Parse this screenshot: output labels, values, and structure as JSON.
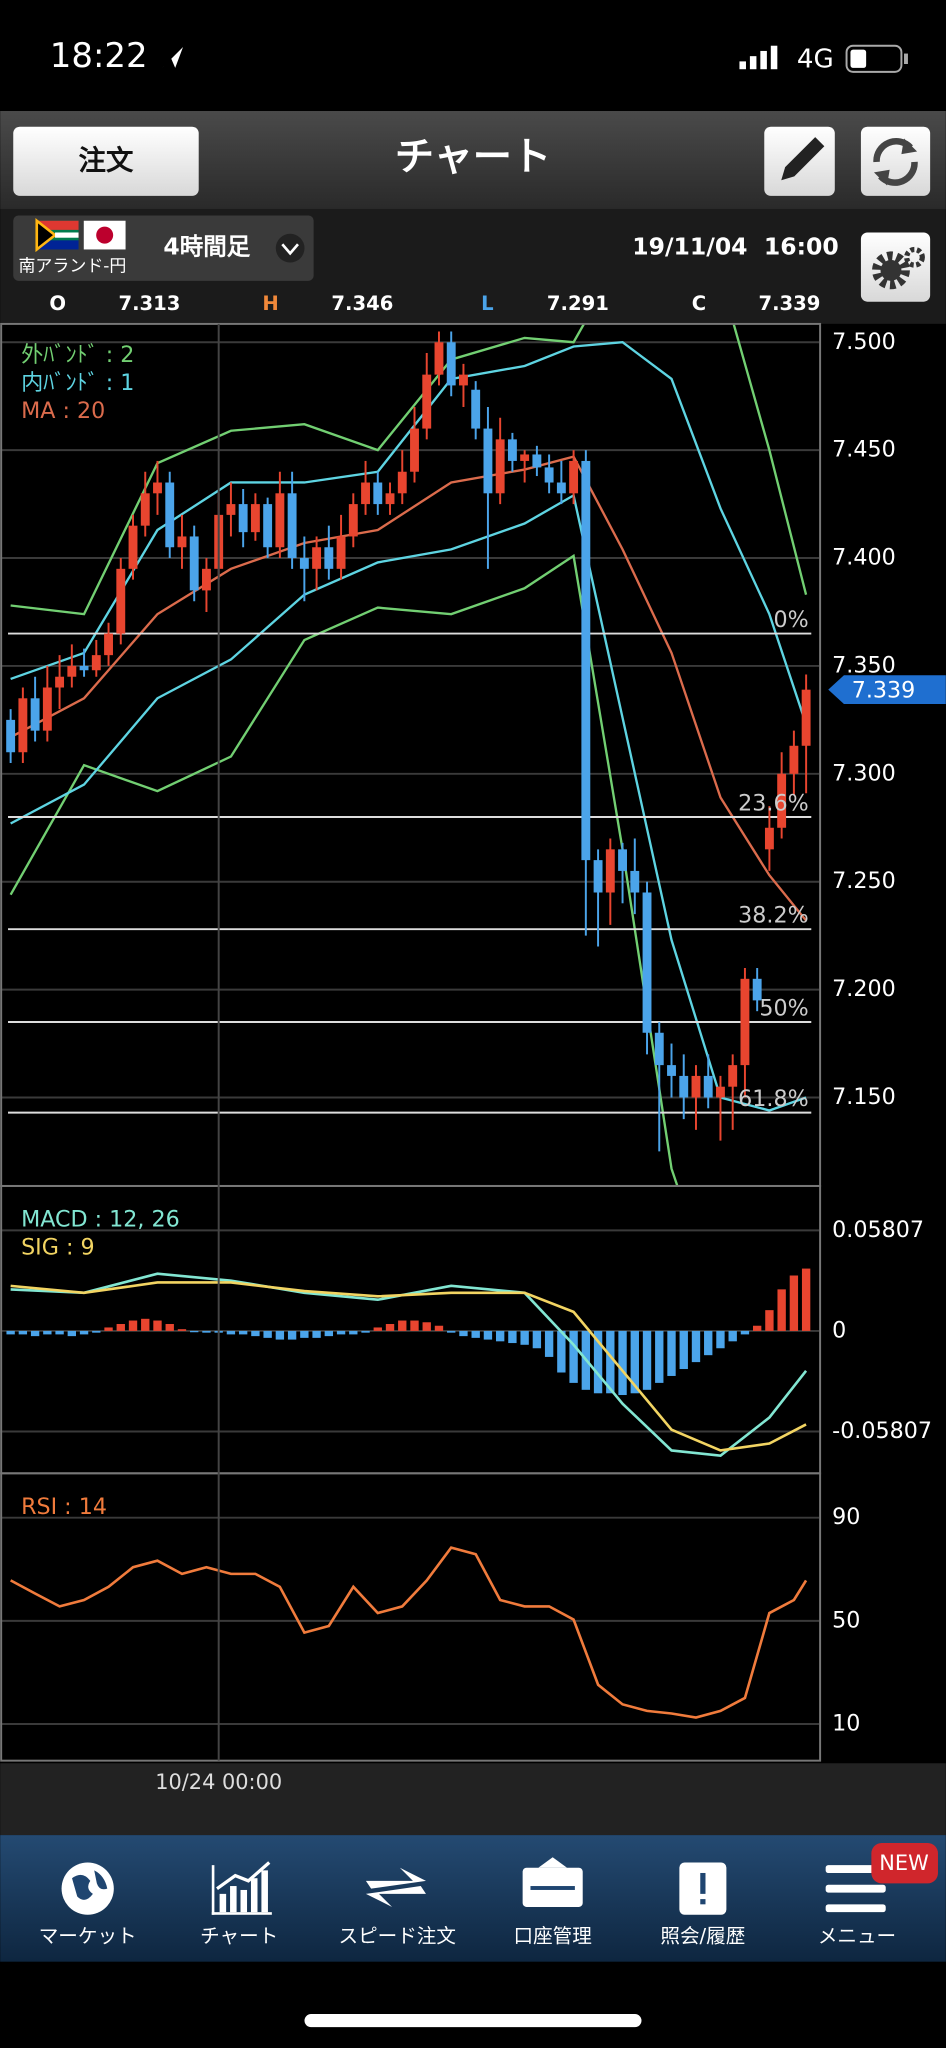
{
  "status_bar": {
    "time": "18:22",
    "network": "4G"
  },
  "header": {
    "order_button": "注文",
    "title": "チャート"
  },
  "instrument": {
    "pair": "南アランド-円",
    "timeframe": "4時間足",
    "datetime": "19/11/04  16:00"
  },
  "ohlc": [
    {
      "label": "O",
      "value": 7.313
    },
    {
      "label": "H",
      "value": 7.346
    },
    {
      "label": "L",
      "value": 7.291
    },
    {
      "label": "C",
      "value": 7.339
    }
  ],
  "chart_data": [
    {
      "type": "candlestick",
      "categories": [
        null,
        null,
        null,
        null,
        null,
        null,
        null,
        null,
        null,
        null,
        null,
        null,
        null,
        null,
        null,
        null,
        null,
        "10/24 00:00",
        null,
        null,
        null,
        null,
        null,
        null,
        null,
        null,
        null,
        null,
        null,
        null,
        null,
        null,
        null,
        null,
        null,
        null,
        null,
        null,
        null,
        null,
        null,
        null,
        null,
        null,
        null,
        null,
        null,
        null,
        null,
        null,
        null,
        null,
        null,
        null,
        null,
        null,
        null,
        null,
        null,
        null,
        null,
        null,
        null,
        null,
        null,
        null
      ],
      "open": [
        7.325,
        7.31,
        7.335,
        7.32,
        7.34,
        7.345,
        7.35,
        7.348,
        7.355,
        7.365,
        7.395,
        7.415,
        7.43,
        7.435,
        7.405,
        7.41,
        7.385,
        7.395,
        7.42,
        7.425,
        7.412,
        7.425,
        7.405,
        7.43,
        7.4,
        7.395,
        7.405,
        7.395,
        7.41,
        7.425,
        7.435,
        7.425,
        7.43,
        7.44,
        7.46,
        7.485,
        7.5,
        7.48,
        7.478,
        7.46,
        7.43,
        7.455,
        7.445,
        7.448,
        7.442,
        7.435,
        7.43,
        7.445,
        7.26,
        7.245,
        7.265,
        7.255,
        7.245,
        7.18,
        7.165,
        7.16,
        7.15,
        7.16,
        7.15,
        7.155,
        7.165,
        7.205,
        7.265,
        7.275,
        7.3,
        7.313
      ],
      "high": [
        7.33,
        7.34,
        7.345,
        7.35,
        7.355,
        7.36,
        7.358,
        7.362,
        7.37,
        7.4,
        7.42,
        7.44,
        7.445,
        7.44,
        7.42,
        7.415,
        7.4,
        7.43,
        7.435,
        7.432,
        7.43,
        7.428,
        7.44,
        7.44,
        7.41,
        7.41,
        7.415,
        7.42,
        7.43,
        7.445,
        7.44,
        7.435,
        7.45,
        7.47,
        7.495,
        7.505,
        7.505,
        7.49,
        7.482,
        7.47,
        7.465,
        7.458,
        7.45,
        7.452,
        7.448,
        7.445,
        7.45,
        7.45,
        7.265,
        7.27,
        7.268,
        7.27,
        7.25,
        7.185,
        7.175,
        7.17,
        7.165,
        7.17,
        7.16,
        7.17,
        7.21,
        7.21,
        7.285,
        7.31,
        7.32,
        7.346
      ],
      "low": [
        7.305,
        7.305,
        7.315,
        7.315,
        7.33,
        7.34,
        7.345,
        7.345,
        7.35,
        7.36,
        7.39,
        7.41,
        7.42,
        7.4,
        7.395,
        7.38,
        7.375,
        7.39,
        7.41,
        7.405,
        7.408,
        7.4,
        7.4,
        7.395,
        7.38,
        7.385,
        7.39,
        7.39,
        7.405,
        7.42,
        7.42,
        7.42,
        7.425,
        7.435,
        7.455,
        7.48,
        7.475,
        7.47,
        7.455,
        7.395,
        7.425,
        7.44,
        7.435,
        7.438,
        7.43,
        7.425,
        7.425,
        7.225,
        7.22,
        7.23,
        7.24,
        7.235,
        7.17,
        7.125,
        7.15,
        7.14,
        7.135,
        7.145,
        7.13,
        7.135,
        7.15,
        7.19,
        7.255,
        7.27,
        7.29,
        7.291
      ],
      "close": [
        7.31,
        7.335,
        7.32,
        7.34,
        7.345,
        7.35,
        7.348,
        7.355,
        7.365,
        7.395,
        7.415,
        7.43,
        7.435,
        7.405,
        7.41,
        7.385,
        7.395,
        7.42,
        7.425,
        7.412,
        7.425,
        7.405,
        7.43,
        7.4,
        7.395,
        7.405,
        7.395,
        7.41,
        7.425,
        7.435,
        7.425,
        7.43,
        7.44,
        7.46,
        7.485,
        7.5,
        7.48,
        7.485,
        7.46,
        7.43,
        7.455,
        7.445,
        7.448,
        7.442,
        7.435,
        7.43,
        7.445,
        7.26,
        7.245,
        7.265,
        7.255,
        7.245,
        7.18,
        7.165,
        7.16,
        7.15,
        7.16,
        7.15,
        7.155,
        7.165,
        7.205,
        7.195,
        7.275,
        7.3,
        7.313,
        7.339
      ],
      "up_color": "#e8452f",
      "down_color": "#4ba4ea",
      "overlays": [
        {
          "name": "外ﾊﾞﾝﾄﾞ : 2",
          "color": "#72cf72",
          "x": [
            0,
            6,
            12,
            18,
            24,
            30,
            36,
            42,
            46,
            50,
            54,
            58,
            62,
            65
          ],
          "upper": [
            7.378,
            7.374,
            7.444,
            7.459,
            7.462,
            7.45,
            7.492,
            7.502,
            7.5,
            7.54,
            7.56,
            7.53,
            7.45,
            7.383
          ],
          "lower": [
            7.244,
            7.304,
            7.292,
            7.308,
            7.362,
            7.377,
            7.374,
            7.386,
            7.401,
            7.265,
            7.117,
            7.05,
            7.04,
            7.06
          ]
        },
        {
          "name": "内ﾊﾞﾝﾄﾞ : 1",
          "color": "#5ed4e2",
          "x": [
            0,
            6,
            12,
            18,
            24,
            30,
            36,
            42,
            46,
            50,
            54,
            58,
            62,
            65
          ],
          "upper": [
            7.344,
            7.356,
            7.413,
            7.435,
            7.435,
            7.44,
            7.483,
            7.489,
            7.498,
            7.5,
            7.483,
            7.423,
            7.374,
            7.323
          ],
          "lower": [
            7.277,
            7.295,
            7.335,
            7.353,
            7.383,
            7.398,
            7.404,
            7.416,
            7.429,
            7.326,
            7.223,
            7.15,
            7.144,
            7.15
          ]
        },
        {
          "name": "MA : 20",
          "color": "#db6b4c",
          "x": [
            0,
            6,
            12,
            18,
            24,
            30,
            36,
            42,
            46,
            50,
            54,
            58,
            62,
            65
          ],
          "values": [
            7.317,
            7.335,
            7.374,
            7.395,
            7.407,
            7.413,
            7.435,
            7.441,
            7.447,
            7.404,
            7.356,
            7.289,
            7.253,
            7.232
          ]
        }
      ],
      "fib_levels": [
        {
          "label": "0%",
          "value": 7.365
        },
        {
          "label": "23.6%",
          "value": 7.28
        },
        {
          "label": "38.2%",
          "value": 7.228
        },
        {
          "label": "50%",
          "value": 7.185
        },
        {
          "label": "61.8%",
          "value": 7.143
        }
      ],
      "last_price": 7.339,
      "ylim": [
        7.109,
        7.5085
      ],
      "yticks": [
        {
          "value": 7.15,
          "label": "7.150"
        },
        {
          "value": 7.2,
          "label": "7.200"
        },
        {
          "value": 7.25,
          "label": "7.250"
        },
        {
          "value": 7.3,
          "label": "7.300"
        },
        {
          "value": 7.35,
          "label": "7.350"
        },
        {
          "value": 7.4,
          "label": "7.400"
        },
        {
          "value": 7.45,
          "label": "7.450"
        },
        {
          "value": 7.5,
          "label": "7.500"
        }
      ],
      "grid": true
    },
    {
      "type": "combo",
      "bars": {
        "up_color": "#e8452f",
        "down_color": "#4ba4ea",
        "values": [
          -0.002,
          -0.002,
          -0.003,
          -0.002,
          -0.002,
          -0.003,
          -0.002,
          -0.001,
          0.002,
          0.004,
          0.006,
          0.007,
          0.006,
          0.004,
          0.001,
          0,
          -0.001,
          -0.001,
          -0.002,
          -0.002,
          -0.003,
          -0.004,
          -0.005,
          -0.005,
          -0.004,
          -0.004,
          -0.003,
          -0.002,
          -0.002,
          -0.001,
          0.002,
          0.004,
          0.006,
          0.006,
          0.005,
          0.003,
          -0.001,
          -0.003,
          -0.004,
          -0.005,
          -0.006,
          -0.007,
          -0.008,
          -0.01,
          -0.015,
          -0.024,
          -0.03,
          -0.034,
          -0.036,
          -0.036,
          -0.037,
          -0.036,
          -0.034,
          -0.03,
          -0.026,
          -0.022,
          -0.018,
          -0.014,
          -0.01,
          -0.006,
          -0.002,
          0.003,
          0.012,
          0.024,
          0.032,
          0.036
        ]
      },
      "series": [
        {
          "name": "MACD : 12, 26",
          "color": "#82e6d2",
          "x": [
            0,
            6,
            12,
            18,
            24,
            30,
            36,
            42,
            46,
            50,
            54,
            58,
            62,
            65
          ],
          "values": [
            0.024,
            0.022,
            0.033,
            0.029,
            0.022,
            0.018,
            0.026,
            0.022,
            -0.008,
            -0.042,
            -0.069,
            -0.072,
            -0.05,
            -0.023
          ]
        },
        {
          "name": "SIG : 9",
          "color": "#f2d462",
          "x": [
            0,
            6,
            12,
            18,
            24,
            30,
            36,
            42,
            46,
            50,
            54,
            58,
            62,
            65
          ],
          "values": [
            0.026,
            0.022,
            0.028,
            0.028,
            0.023,
            0.02,
            0.022,
            0.022,
            0.011,
            -0.023,
            -0.057,
            -0.069,
            -0.065,
            -0.054
          ]
        }
      ],
      "ylim": [
        -0.0822,
        0.0837
      ],
      "yticks": [
        -0.05807,
        0,
        0.05807
      ],
      "grid": true
    },
    {
      "type": "line",
      "series": [
        {
          "name": "RSI : 14",
          "color": "#f07b3c",
          "x": [
            0,
            2,
            4,
            6,
            8,
            10,
            12,
            14,
            16,
            18,
            20,
            22,
            24,
            26,
            28,
            30,
            32,
            34,
            36,
            38,
            40,
            42,
            44,
            46,
            48,
            50,
            52,
            54,
            56,
            58,
            60,
            62,
            64,
            65
          ],
          "values": [
            65.7,
            60.6,
            55.6,
            58.1,
            63.2,
            70.8,
            73.3,
            68.2,
            70.8,
            68.2,
            68.2,
            63.2,
            45.4,
            48,
            63.2,
            53,
            55.6,
            65.7,
            78.4,
            75.8,
            58.1,
            55.6,
            55.6,
            50.5,
            25.2,
            17.6,
            15.1,
            14.1,
            12.5,
            15.1,
            20.1,
            53,
            58.1,
            65.7
          ]
        }
      ],
      "ylim": [
        -4.2,
        107.2
      ],
      "yticks": [
        10,
        50,
        90
      ],
      "grid": true
    }
  ],
  "tab_bar": {
    "items": [
      "マーケット",
      "チャート",
      "スピード注文",
      "口座管理",
      "照会/履歴",
      "メニュー"
    ],
    "badge": "NEW"
  }
}
